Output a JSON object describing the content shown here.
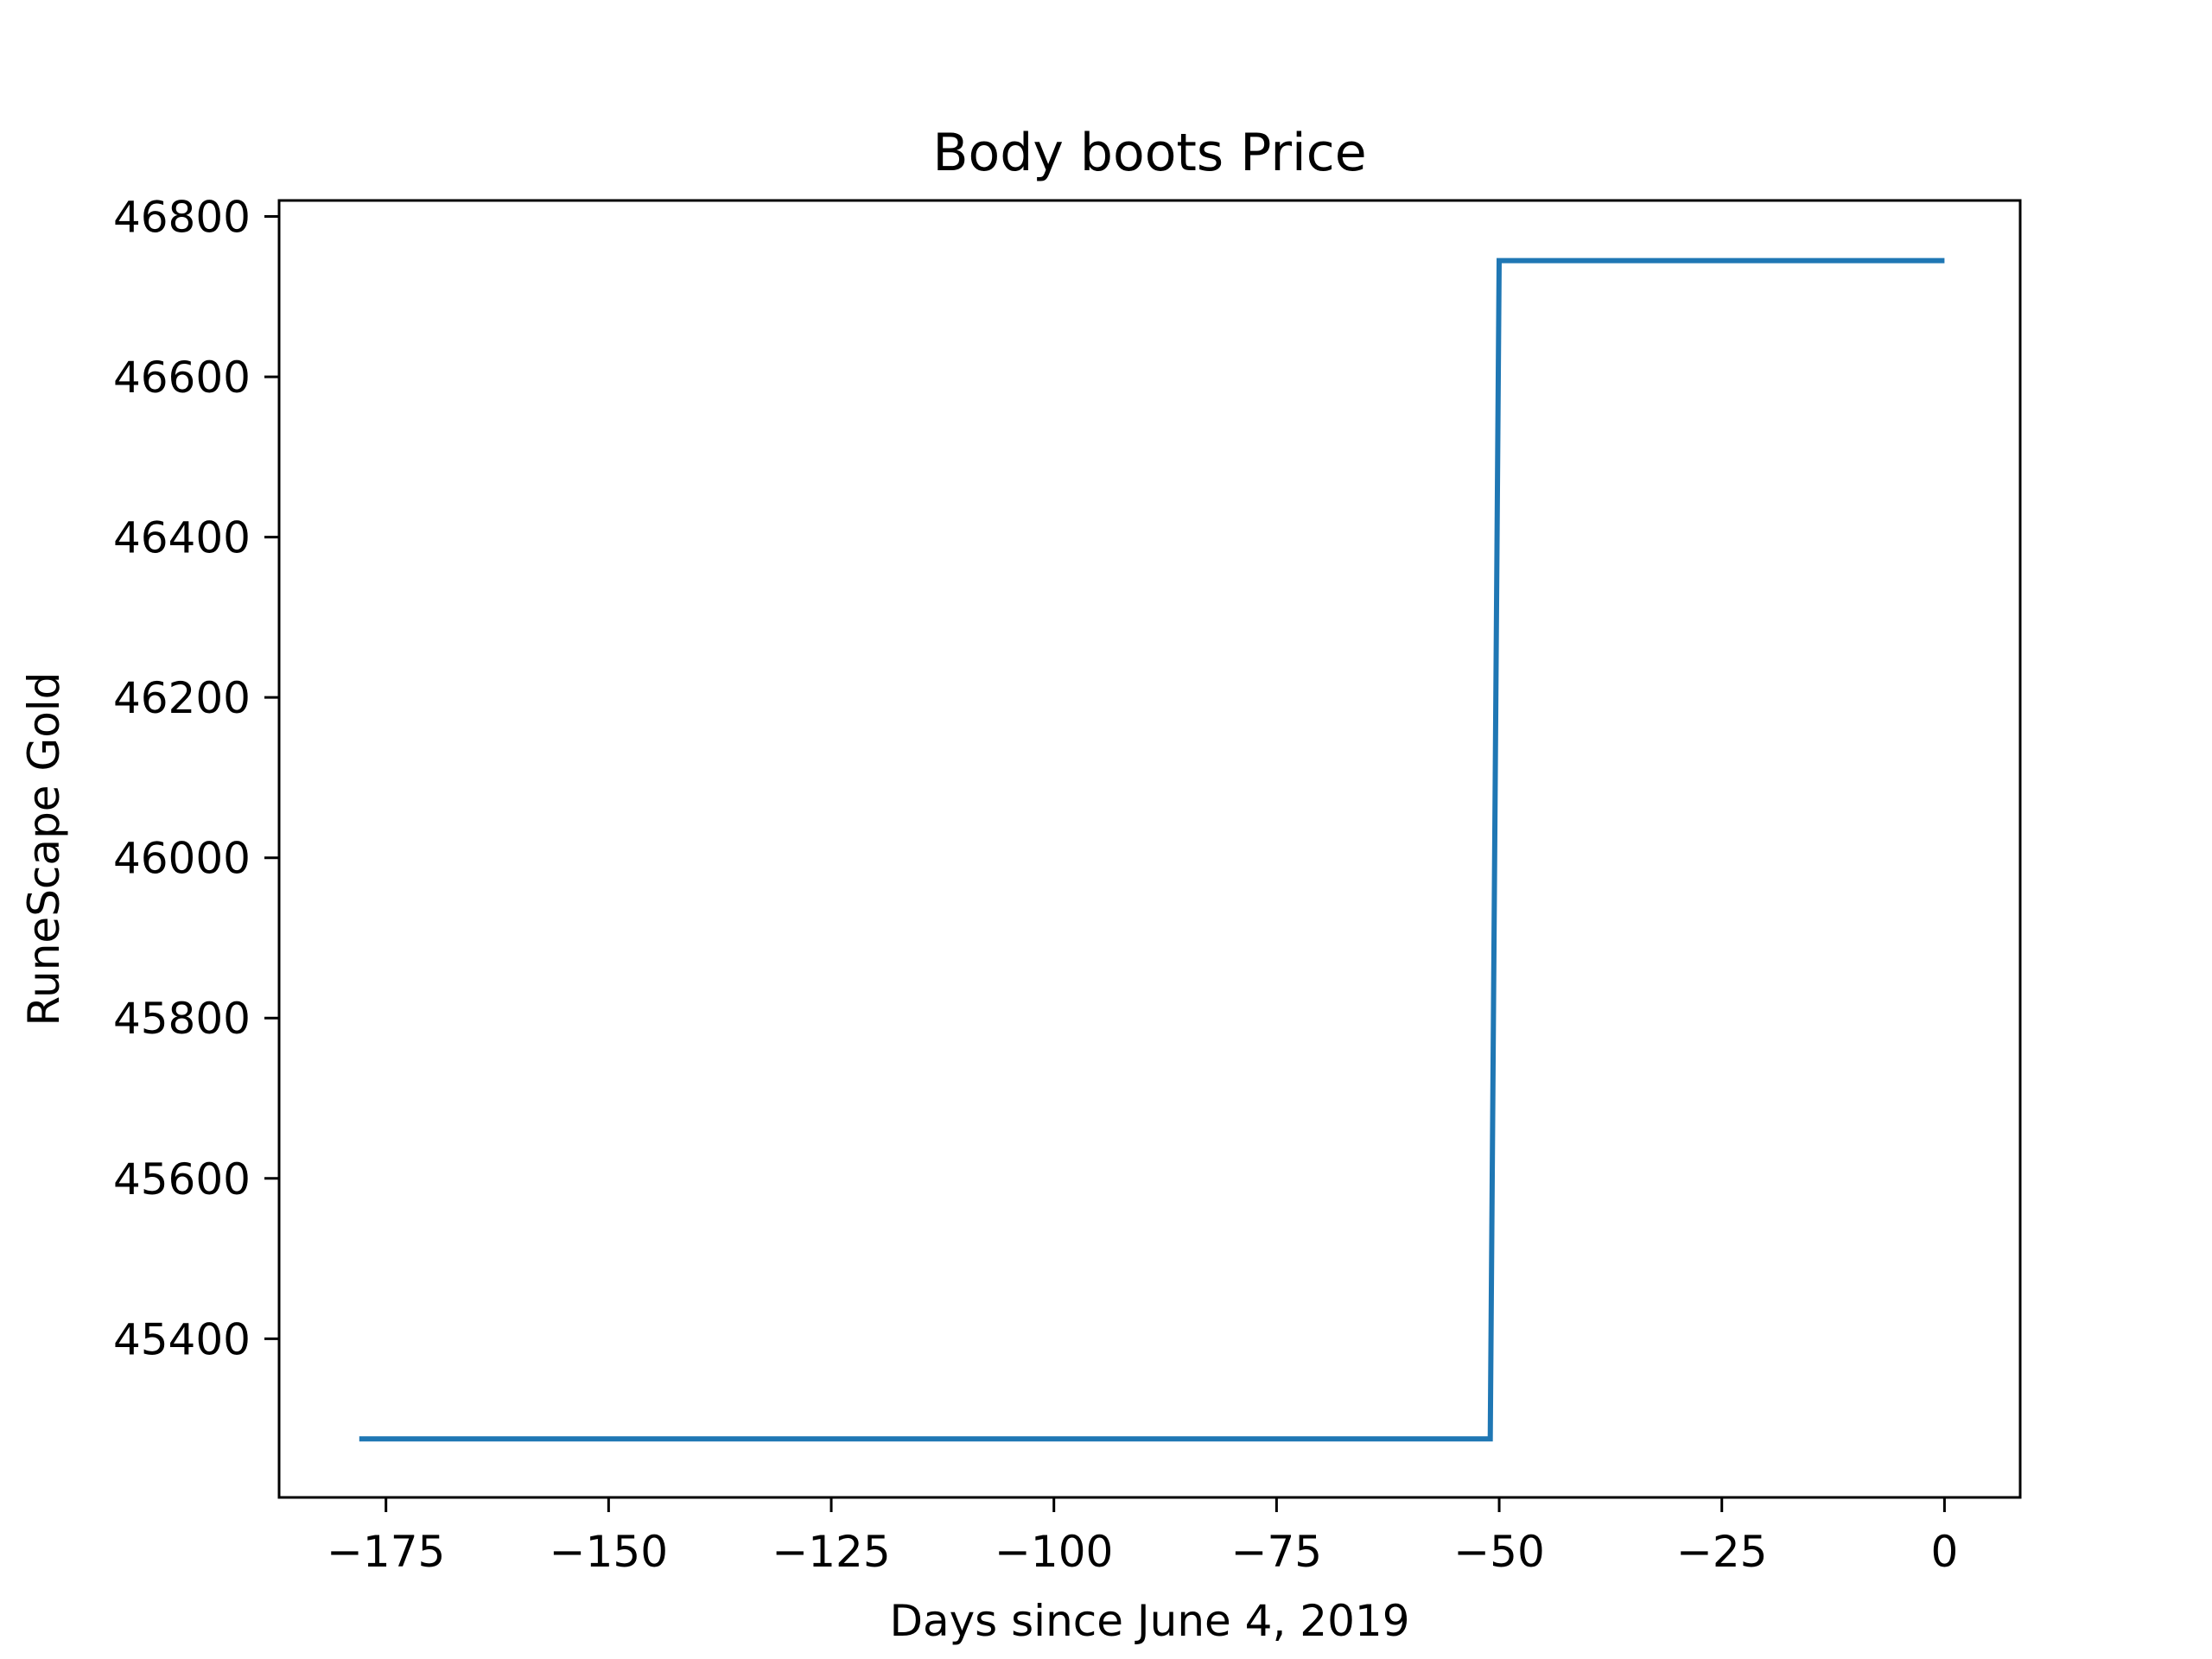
{
  "chart_data": {
    "type": "line",
    "title": "Body boots Price",
    "xlabel": "Days since June 4, 2019",
    "ylabel": "RuneScape Gold",
    "xlim": [
      -187,
      8.5
    ],
    "ylim": [
      45202,
      46820
    ],
    "xticks": [
      -175,
      -150,
      -125,
      -100,
      -75,
      -50,
      -25,
      0
    ],
    "xtick_labels": [
      "−175",
      "−150",
      "−125",
      "−100",
      "−75",
      "−50",
      "−25",
      "0"
    ],
    "yticks": [
      45400,
      45600,
      45800,
      46000,
      46200,
      46400,
      46600,
      46800
    ],
    "ytick_labels": [
      "45400",
      "45600",
      "45800",
      "46000",
      "46200",
      "46400",
      "46600",
      "46800"
    ],
    "grid": false,
    "series": [
      {
        "color": "#1f77b4",
        "x": [
          -178,
          -51,
          -50,
          0
        ],
        "y": [
          45275,
          45275,
          46745,
          46745
        ]
      }
    ]
  }
}
